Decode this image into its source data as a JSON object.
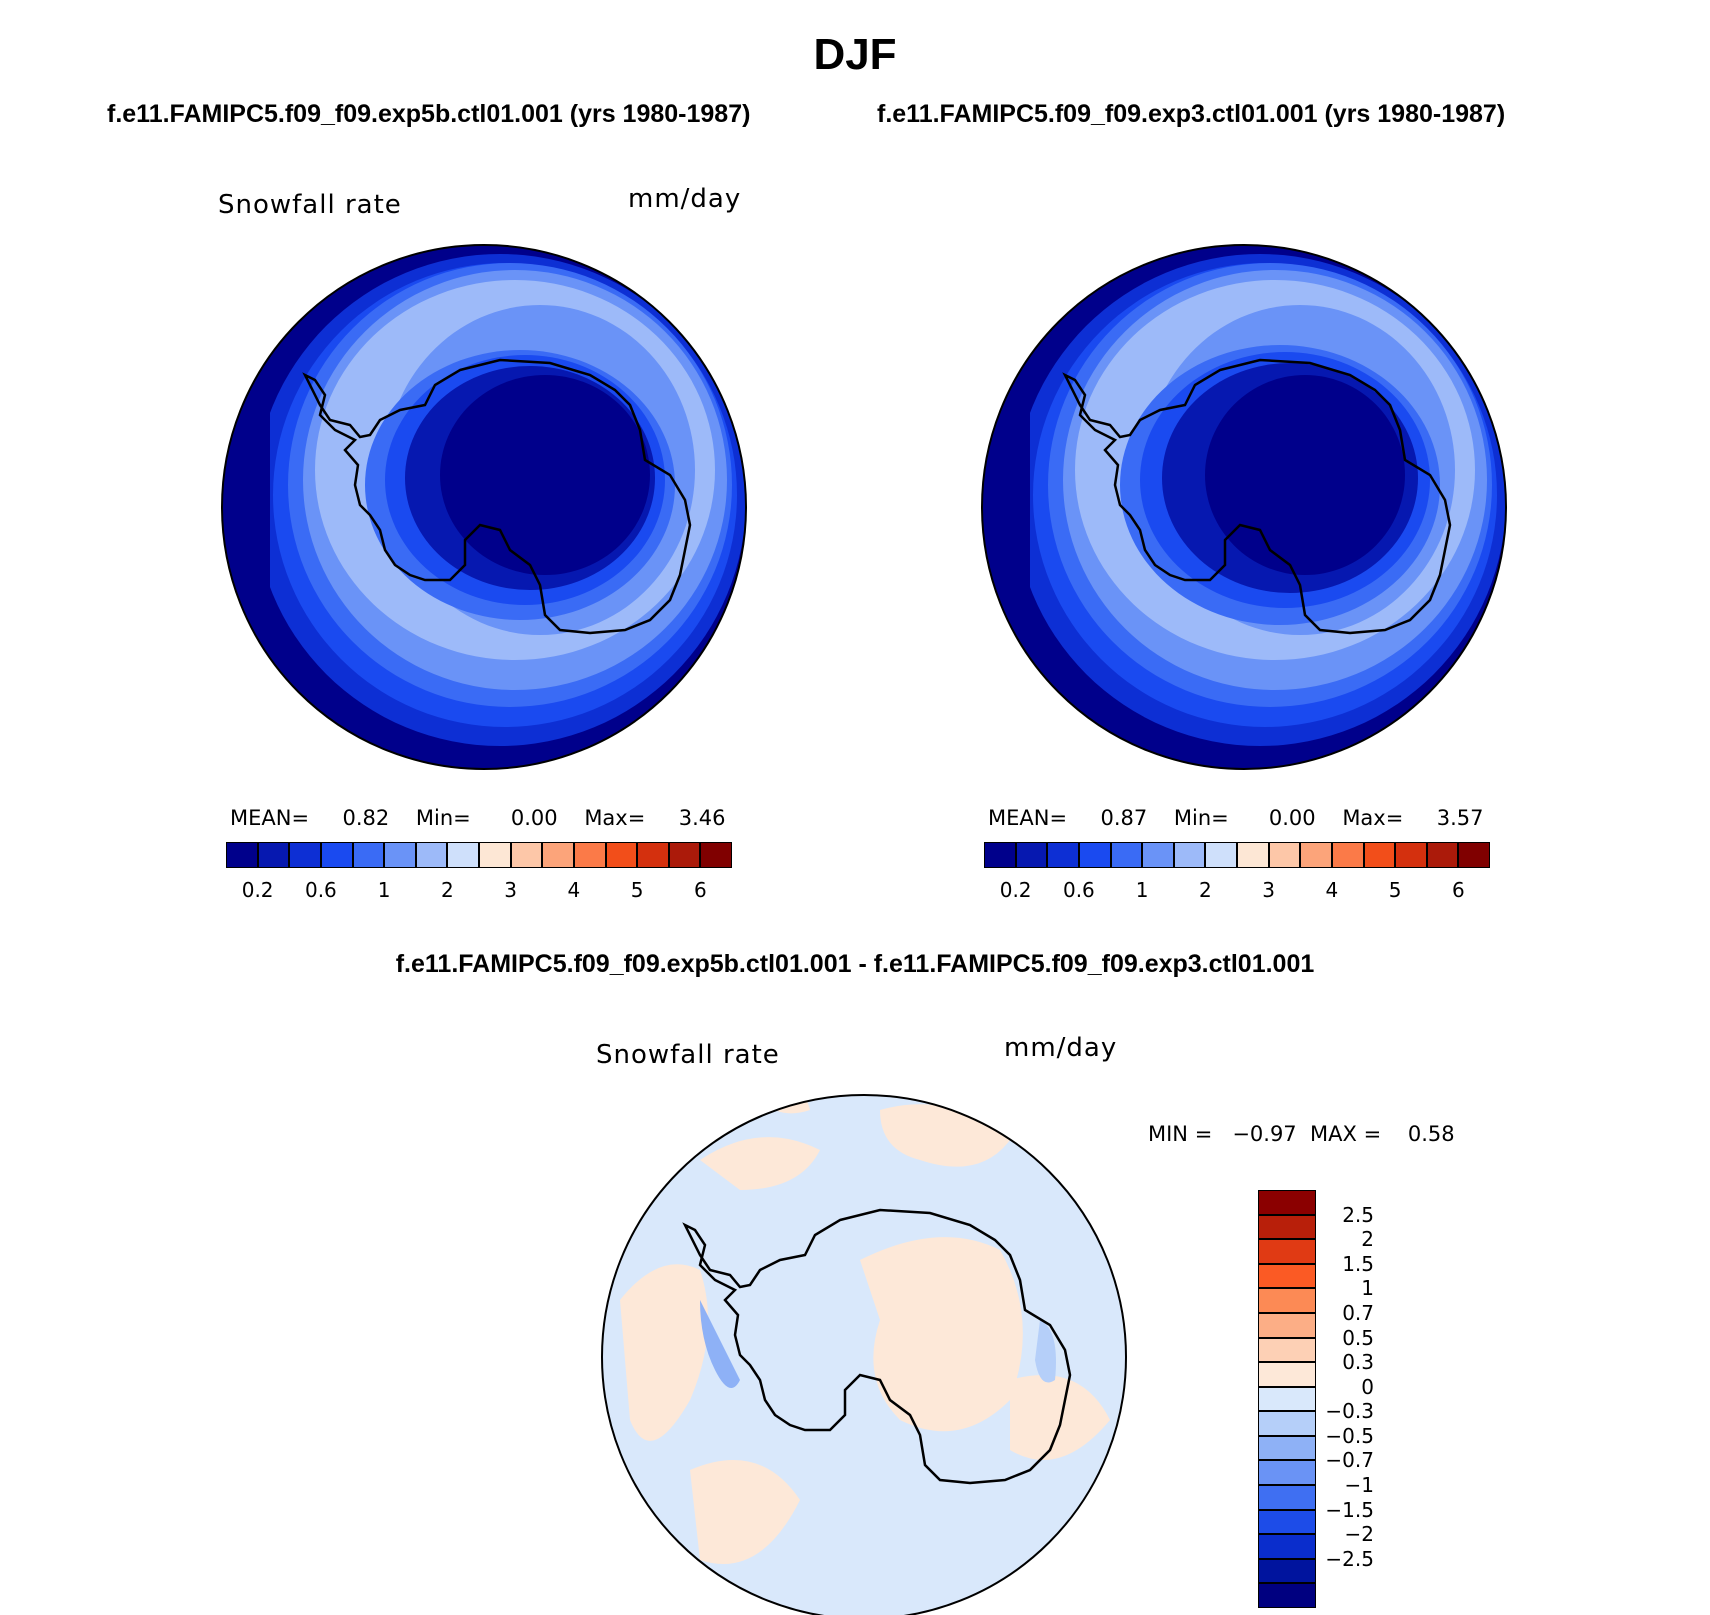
{
  "title": "DJF",
  "panels": [
    {
      "case": "f.e11.FAMIPC5.f09_f09.exp5b.ctl01.001 (yrs 1980-1987)",
      "variable": "Snowfall rate",
      "units": "mm/day",
      "stats": {
        "mean_label": "MEAN=",
        "mean": "0.82",
        "min_label": "Min=",
        "min": "0.00",
        "max_label": "Max=",
        "max": "3.46"
      }
    },
    {
      "case": "f.e11.FAMIPC5.f09_f09.exp3.ctl01.001 (yrs 1980-1987)",
      "variable": "Snowfall rate",
      "units": "mm/day",
      "stats": {
        "mean_label": "MEAN=",
        "mean": "0.87",
        "min_label": "Min=",
        "min": "0.00",
        "max_label": "Max=",
        "max": "3.57"
      }
    }
  ],
  "top_colorbar": {
    "colors": [
      "#00008b",
      "#0618b0",
      "#0d2fd4",
      "#1a4af0",
      "#3a6bf5",
      "#6a93f7",
      "#9dbaf9",
      "#cfe0fb",
      "#fde7d5",
      "#fdc7a8",
      "#fca47a",
      "#fb7a48",
      "#f24e1a",
      "#d4300e",
      "#ab1a0a",
      "#800000"
    ],
    "ticks": [
      "0.2",
      "0.6",
      "1",
      "2",
      "3",
      "4",
      "5",
      "6"
    ]
  },
  "difference": {
    "title": "f.e11.FAMIPC5.f09_f09.exp5b.ctl01.001 - f.e11.FAMIPC5.f09_f09.exp3.ctl01.001",
    "variable": "Snowfall rate",
    "units": "mm/day",
    "minmax": "MIN =   −0.97  MAX =    0.58",
    "colorbar": {
      "colors": [
        "#8b0000",
        "#b81f0a",
        "#e03a14",
        "#fb5a24",
        "#fc8a55",
        "#fcae86",
        "#fdd0b5",
        "#fde8d8",
        "#d9e8fb",
        "#b5cff9",
        "#8eb1f6",
        "#6a93f5",
        "#3f6ff2",
        "#1d4ce8",
        "#0a2dcc",
        "#00149e",
        "#000080"
      ],
      "ticks": [
        "2.5",
        "2",
        "1.5",
        "1",
        "0.7",
        "0.5",
        "0.3",
        "0",
        "−0.3",
        "−0.5",
        "−0.7",
        "−1",
        "−1.5",
        "−2",
        "−2.5"
      ]
    }
  },
  "chart_data": [
    {
      "type": "heatmap",
      "title": "Snowfall rate",
      "units": "mm/day",
      "projection": "south polar stereographic",
      "levels": [
        0.2,
        0.4,
        0.6,
        0.8,
        1,
        1.5,
        2,
        2.5,
        3,
        3.5,
        4,
        4.5,
        5,
        5.5,
        6
      ],
      "stats": {
        "mean": 0.82,
        "min": 0.0,
        "max": 3.46
      }
    },
    {
      "type": "heatmap",
      "title": "Snowfall rate",
      "units": "mm/day",
      "projection": "south polar stereographic",
      "levels": [
        0.2,
        0.4,
        0.6,
        0.8,
        1,
        1.5,
        2,
        2.5,
        3,
        3.5,
        4,
        4.5,
        5,
        5.5,
        6
      ],
      "stats": {
        "mean": 0.87,
        "min": 0.0,
        "max": 3.57
      }
    },
    {
      "type": "heatmap",
      "title": "Snowfall rate",
      "units": "mm/day",
      "projection": "south polar stereographic",
      "levels": [
        -2.5,
        -2,
        -1.5,
        -1,
        -0.7,
        -0.5,
        -0.3,
        0,
        0.3,
        0.5,
        0.7,
        1,
        1.5,
        2,
        2.5
      ],
      "stats": {
        "min": -0.97,
        "max": 0.58
      }
    }
  ]
}
